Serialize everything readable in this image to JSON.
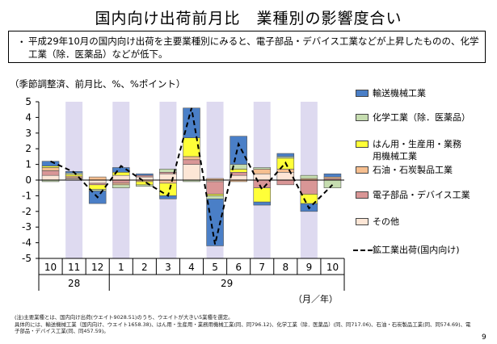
{
  "page": {
    "title": "国内向け出荷前月比　業種別の影響度合い",
    "summary_bullet": "・",
    "summary": "平成29年10月の国内向け出荷を主要業種別にみると、電子部品・デバイス工業などが上昇したものの、化学工業（除．医薬品）などが低下。",
    "unit_label": "（季節調整済、前月比、%、%ポイント）",
    "month_unit": "（月／年）",
    "note": "(注)主要業種とは、国内向け出荷(ウエイト9028.51)のうち、ウエイトが大きい5業種を選定。\n具体的には、輸送機械工業（国内向け、ウエイト1658.38)、はん用・生産用・業務用機械工業(同、同796.12)、化学工業（除．医薬品）(同、同717.06)、石油・石炭製品工業(同、同574.69)、電子部品・デバイス工業(同、同457.59)。",
    "page_number": "9"
  },
  "legend": [
    {
      "label": "輸送機械工業",
      "color": "#4a7fc7"
    },
    {
      "label": "化学工業（除．医薬品）",
      "color": "#c6ddb0"
    },
    {
      "label": "はん用・生産用・業務用機械工業",
      "color": "#ffff38"
    },
    {
      "label": "石油・石炭製品工業",
      "color": "#f6bf90"
    },
    {
      "label": "電子部品・デバイス工業",
      "color": "#d99696"
    },
    {
      "label": "その他",
      "color": "#fde6d6"
    },
    {
      "label": "鉱工業出荷(国内向け)",
      "color": "#000000"
    }
  ],
  "chart_data": {
    "type": "bar",
    "stacked": true,
    "x_labels": [
      "10",
      "11",
      "12",
      "1",
      "2",
      "3",
      "4",
      "5",
      "6",
      "7",
      "8",
      "9",
      "10"
    ],
    "year_labels": [
      {
        "label": "28",
        "start_index": 0,
        "end_index": 2
      },
      {
        "label": "29",
        "start_index": 3,
        "end_index": 12
      }
    ],
    "shaded_indices": [
      1,
      3,
      5,
      7,
      9,
      11
    ],
    "ylim": [
      -5,
      5
    ],
    "yticks": [
      -5,
      -4,
      -3,
      -2,
      -1,
      0,
      1,
      2,
      3,
      4,
      5
    ],
    "grid": false,
    "legend_position": "right",
    "series": [
      {
        "name": "その他",
        "color": "#fde6d6",
        "values": [
          0.3,
          0.1,
          -0.2,
          0.3,
          0.2,
          0.4,
          1.0,
          -0.1,
          0.3,
          0.4,
          0.5,
          0.0,
          0.0
        ]
      },
      {
        "name": "電子部品・デバイス工業",
        "color": "#d99696",
        "values": [
          0.3,
          0.05,
          -0.1,
          -0.2,
          0.1,
          0.1,
          0.3,
          -0.8,
          0.2,
          -0.5,
          -0.3,
          -0.9,
          0.1
        ]
      },
      {
        "name": "石油・石炭製品工業",
        "color": "#f6bf90",
        "values": [
          0.2,
          0.1,
          0.2,
          -0.1,
          -0.1,
          -0.2,
          0.2,
          0.1,
          -0.1,
          0.3,
          0.2,
          0.1,
          0.1
        ]
      },
      {
        "name": "はん用・生産用・業務用機械工業",
        "color": "#ffff38",
        "values": [
          0.1,
          0.1,
          -0.3,
          0.2,
          -0.2,
          -0.8,
          1.2,
          -0.1,
          0.2,
          -0.9,
          0.7,
          -0.6,
          0.0
        ]
      },
      {
        "name": "化学工業（除．医薬品）",
        "color": "#c6ddb0",
        "values": [
          -0.1,
          0.1,
          -0.1,
          -0.2,
          -0.1,
          0.2,
          -0.1,
          -0.2,
          0.3,
          0.1,
          0.1,
          0.2,
          -0.5
        ]
      },
      {
        "name": "輸送機械工業",
        "color": "#4a7fc7",
        "values": [
          0.3,
          0.1,
          -0.8,
          0.3,
          0.1,
          -0.2,
          1.9,
          -3.0,
          1.8,
          -0.2,
          0.2,
          -0.5,
          0.2
        ]
      }
    ],
    "line": {
      "name": "鉱工業出荷(国内向け)",
      "values": [
        1.2,
        0.5,
        -1.1,
        0.9,
        -0.1,
        -1.0,
        4.6,
        -4.1,
        2.3,
        -0.6,
        1.1,
        -1.8,
        -0.3
      ]
    }
  }
}
